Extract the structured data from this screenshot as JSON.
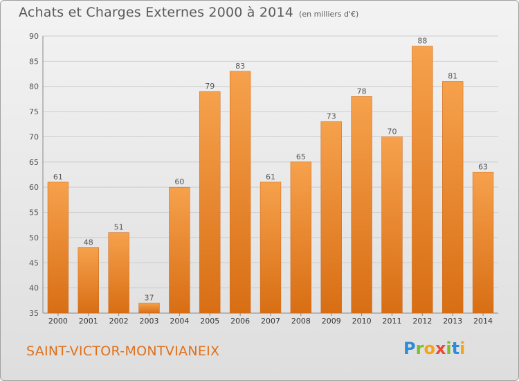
{
  "header": {
    "title": "Achats et Charges Externes 2000 à 2014",
    "subtitle": "(en milliers d'€)"
  },
  "footer": {
    "city": "SAINT-VICTOR-MONTVIANEIX",
    "logo": "Proxiti"
  },
  "colors": {
    "bar_light": "#f6a14c",
    "bar_dark": "#d86e14",
    "grid": "#cccccc",
    "text": "#555555",
    "city": "#e0701a"
  },
  "chart_data": {
    "type": "bar",
    "title": "Achats et Charges Externes 2000 à 2014",
    "subtitle": "(en milliers d'€)",
    "categories": [
      "2000",
      "2001",
      "2002",
      "2003",
      "2004",
      "2005",
      "2006",
      "2007",
      "2008",
      "2009",
      "2010",
      "2011",
      "2012",
      "2013",
      "2014"
    ],
    "values": [
      61,
      48,
      51,
      37,
      60,
      79,
      83,
      61,
      65,
      73,
      78,
      70,
      88,
      81,
      63
    ],
    "ylim": [
      35,
      90
    ],
    "yticks": [
      35,
      40,
      45,
      50,
      55,
      60,
      65,
      70,
      75,
      80,
      85,
      90
    ],
    "grid": true,
    "data_labels": true
  }
}
